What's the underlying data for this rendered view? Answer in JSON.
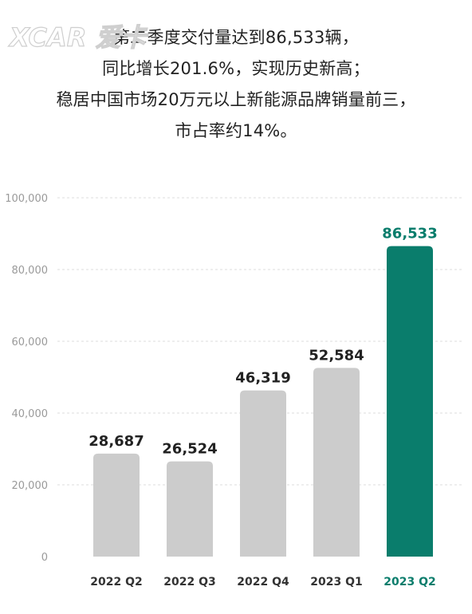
{
  "headline": {
    "lines": [
      "第二季度交付量达到86,533辆，",
      "同比增长201.6%，实现历史新高；",
      "稳居中国市场20万元以上新能源品牌销量前三，",
      "市占率约14%。"
    ]
  },
  "logo": {
    "text": "XCAR 爱卡",
    "icon": "xcar-logo-watermark"
  },
  "colors": {
    "bar_default": "#cccccc",
    "bar_highlight": "#0a7d6c",
    "grid": "#dddddd",
    "axis_text": "#9a9a9a"
  },
  "chart_data": {
    "type": "bar",
    "categories": [
      "2022 Q2",
      "2022 Q3",
      "2022 Q4",
      "2023 Q1",
      "2023 Q2"
    ],
    "values": [
      28687,
      26524,
      46319,
      52584,
      86533
    ],
    "value_labels": [
      "28,687",
      "26,524",
      "46,319",
      "52,584",
      "86,533"
    ],
    "highlight_index": 4,
    "ylim": [
      0,
      100000
    ],
    "yticks": [
      0,
      20000,
      40000,
      60000,
      80000,
      100000
    ],
    "ytick_labels": [
      "0",
      "20,000",
      "40,000",
      "60,000",
      "80,000",
      "100,000"
    ],
    "grid": true,
    "title": "",
    "xlabel": "",
    "ylabel": ""
  }
}
